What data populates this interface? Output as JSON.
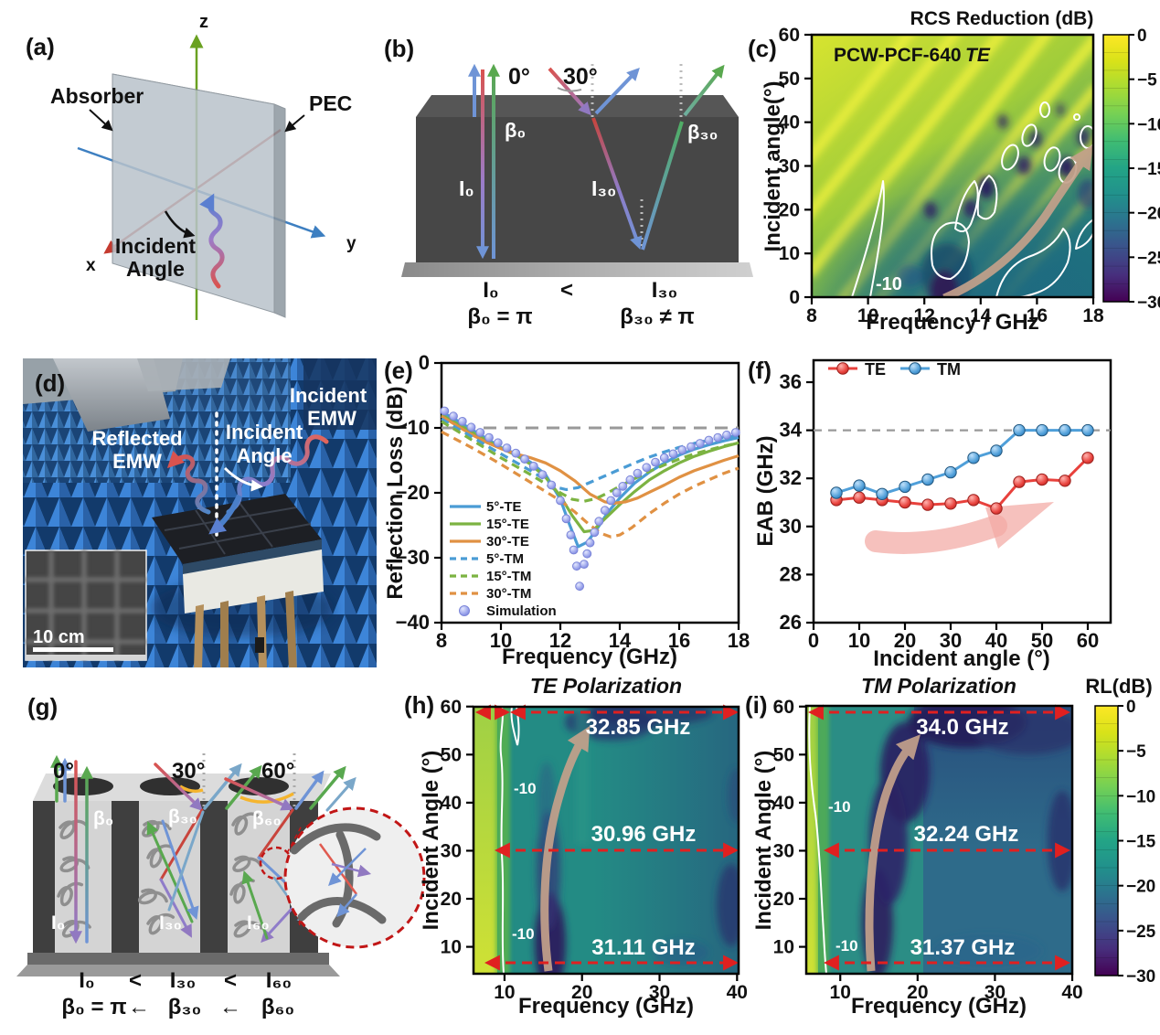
{
  "colors": {
    "viridis_top": "#fde725",
    "viridis_bottom": "#440154",
    "te_blue": "#4a9cd5",
    "te_green": "#7cb342",
    "te_orange": "#e09143",
    "sim_purple": "#9fa8ed",
    "f_te_red": "#e8413c",
    "f_tm_blue": "#4f9fd9",
    "annotation_red": "#e02020",
    "trend_arrow_tan": "#c4a18b"
  },
  "panels": {
    "a": {
      "label": "(a)",
      "absorber": "Absorber",
      "pec": "PEC",
      "incident1": "Incident",
      "incident2": "Angle",
      "ax_x": "x",
      "ax_y": "y",
      "ax_z": "z"
    },
    "b": {
      "label": "(b)",
      "deg0": "0°",
      "deg30": "30°",
      "beta0": "β₀",
      "beta30": "β₃₀",
      "i0": "I₀",
      "i30": "I₃₀",
      "eq_i0": "I₀",
      "eq_lt": "<",
      "eq_i30": "I₃₀",
      "eq_b0": "β₀ = π",
      "eq_b30": "β₃₀ ≠ π"
    },
    "c": {
      "label": "(c)",
      "title": "RCS Reduction (dB)",
      "sample": "PCW-PCF-640",
      "pol": "TE",
      "xlabel": "Frequency / GHz",
      "ylabel": "Incident angle(°)",
      "contour": "-10"
    },
    "d": {
      "label": "(d)",
      "refl1": "Reflected",
      "refl2": "EMW",
      "ang1": "Incident",
      "ang2": "Angle",
      "inc1": "Incident",
      "inc2": "EMW",
      "scale": "10 cm"
    },
    "e": {
      "label": "(e)",
      "xlabel": "Frequency (GHz)",
      "ylabel": "Reflection Loss (dB)"
    },
    "f": {
      "label": "(f)",
      "xlabel": "Incident angle (°)",
      "ylabel": "EAB (GHz)"
    },
    "g": {
      "label": "(g)",
      "deg0": "0°",
      "deg30": "30°",
      "deg60": "60°",
      "beta0": "β₀",
      "beta30": "β₃₀",
      "beta60": "β₆₀",
      "i0": "I₀",
      "i30": "I₃₀",
      "i60": "I₆₀",
      "eq1_i0": "I₀",
      "eq1_lt1": "<",
      "eq1_i30": "I₃₀",
      "eq1_lt2": "<",
      "eq1_i60": "I₆₀",
      "eq2_b0": "β₀ = π",
      "eq2_ar1": "←",
      "eq2_b30": "β₃₀",
      "eq2_ar2": "←",
      "eq2_b60": "β₆₀"
    },
    "h": {
      "label": "(h)",
      "title": "TE Polarization",
      "xlabel": "Frequency (GHz)",
      "ylabel": "Incident Angle (°)",
      "ann_top": "32.85 GHz",
      "ann_mid": "30.96 GHz",
      "ann_bot": "31.11 GHz",
      "contour1": "-10",
      "contour2": "-10"
    },
    "i": {
      "label": "(i)",
      "title": "TM Polarization",
      "cbar": "RL(dB)",
      "xlabel": "Frequency (GHz)",
      "ylabel": "Incident Angle (°)",
      "ann_top": "34.0 GHz",
      "ann_mid": "32.24 GHz",
      "ann_bot": "31.37 GHz",
      "contour1": "-10",
      "contour2": "-10"
    }
  },
  "chart_data": [
    {
      "id": "c",
      "type": "heatmap",
      "title": "RCS Reduction (dB)",
      "in_plot_label": "PCW-PCF-640 TE",
      "xlabel": "Frequency / GHz",
      "ylabel": "Incident angle(°)",
      "xlim": [
        8,
        18
      ],
      "ylim": [
        0,
        60
      ],
      "xticks": [
        8,
        10,
        12,
        14,
        16,
        18
      ],
      "yticks": [
        0,
        10,
        20,
        30,
        40,
        50,
        60
      ],
      "colormap": "viridis",
      "colorbar_range": [
        0,
        -30
      ],
      "colorbar_ticks": [
        0,
        -5,
        -10,
        -15,
        -20,
        -25,
        -30
      ],
      "contour_level": -10,
      "features": "Yellow diagonal interference stripes upper-left; teal region bottom-right; deep minima (<-25 dB) near 12.7 GHz at 0-5 deg and scattered blobs 13-18 GHz at 15-40 deg; tan trend arrow from (13 GHz, 0 deg) to (18 GHz, 35 deg)"
    },
    {
      "id": "e",
      "type": "line",
      "xlabel": "Frequency (GHz)",
      "ylabel": "Reflection Loss (dB)",
      "xlim": [
        8,
        18
      ],
      "ylim": [
        -40,
        0
      ],
      "xticks": [
        8,
        10,
        12,
        14,
        16,
        18
      ],
      "yticks": [
        0,
        -10,
        -20,
        -30,
        -40
      ],
      "ref_line": -10,
      "series": [
        {
          "name": "5°-TE",
          "color": "#4a9cd5",
          "dash": "solid",
          "points": [
            [
              8,
              -7.5
            ],
            [
              8.5,
              -8.8
            ],
            [
              9,
              -10.2
            ],
            [
              9.5,
              -11.6
            ],
            [
              10,
              -13
            ],
            [
              10.5,
              -14
            ],
            [
              11,
              -15.3
            ],
            [
              11.5,
              -17.2
            ],
            [
              12,
              -21
            ],
            [
              12.3,
              -24.8
            ],
            [
              12.6,
              -28.3
            ],
            [
              12.9,
              -27.6
            ],
            [
              13.2,
              -25.8
            ],
            [
              13.6,
              -23
            ],
            [
              14,
              -20.8
            ],
            [
              14.5,
              -18.5
            ],
            [
              15,
              -16.8
            ],
            [
              15.5,
              -15.4
            ],
            [
              16,
              -14.2
            ],
            [
              16.5,
              -13.3
            ],
            [
              17,
              -12.6
            ],
            [
              17.5,
              -12
            ],
            [
              18,
              -11.5
            ]
          ]
        },
        {
          "name": "15°-TE",
          "color": "#7cb342",
          "dash": "solid",
          "points": [
            [
              8,
              -8
            ],
            [
              8.5,
              -9.3
            ],
            [
              9,
              -10.6
            ],
            [
              9.5,
              -11.9
            ],
            [
              10,
              -13.1
            ],
            [
              10.5,
              -14.2
            ],
            [
              11,
              -15.6
            ],
            [
              11.5,
              -17.6
            ],
            [
              12,
              -20.5
            ],
            [
              12.4,
              -23.5
            ],
            [
              12.8,
              -26
            ],
            [
              13.1,
              -25.8
            ],
            [
              13.5,
              -24
            ],
            [
              14,
              -21.8
            ],
            [
              14.5,
              -19.8
            ],
            [
              15,
              -18
            ],
            [
              15.5,
              -16.6
            ],
            [
              16,
              -15.4
            ],
            [
              16.5,
              -14.4
            ],
            [
              17,
              -13.6
            ],
            [
              17.5,
              -12.9
            ],
            [
              18,
              -12.3
            ]
          ]
        },
        {
          "name": "30°-TE",
          "color": "#e09143",
          "dash": "solid",
          "points": [
            [
              8,
              -8.2
            ],
            [
              8.5,
              -9.6
            ],
            [
              9,
              -11
            ],
            [
              9.5,
              -12.2
            ],
            [
              10,
              -13.2
            ],
            [
              10.5,
              -14
            ],
            [
              11,
              -14.6
            ],
            [
              11.5,
              -15.4
            ],
            [
              12,
              -16.6
            ],
            [
              12.5,
              -18.2
            ],
            [
              13,
              -20.2
            ],
            [
              13.5,
              -21.4
            ],
            [
              13.8,
              -21.6
            ],
            [
              14.2,
              -21.4
            ],
            [
              14.6,
              -20.8
            ],
            [
              15,
              -19.9
            ],
            [
              15.5,
              -18.8
            ],
            [
              16,
              -17.6
            ],
            [
              16.5,
              -16.6
            ],
            [
              17,
              -15.8
            ],
            [
              17.5,
              -15
            ],
            [
              18,
              -14.3
            ]
          ]
        },
        {
          "name": "5°-TM",
          "color": "#4a9cd5",
          "dash": "dashed",
          "points": [
            [
              8,
              -8.6
            ],
            [
              8.5,
              -10
            ],
            [
              9,
              -11.3
            ],
            [
              9.5,
              -12.7
            ],
            [
              10,
              -14
            ],
            [
              10.5,
              -15.3
            ],
            [
              11,
              -16.6
            ],
            [
              11.5,
              -18
            ],
            [
              11.9,
              -19.2
            ],
            [
              12.2,
              -19.5
            ],
            [
              12.6,
              -19.2
            ],
            [
              13,
              -18.4
            ],
            [
              13.5,
              -17.4
            ],
            [
              14,
              -16.4
            ],
            [
              14.5,
              -15.4
            ],
            [
              15,
              -14.5
            ],
            [
              15.5,
              -13.7
            ],
            [
              16,
              -13
            ],
            [
              16.5,
              -12.4
            ],
            [
              17,
              -11.9
            ],
            [
              17.5,
              -11.5
            ],
            [
              18,
              -11.2
            ]
          ]
        },
        {
          "name": "15°-TM",
          "color": "#7cb342",
          "dash": "dashed",
          "points": [
            [
              8,
              -9
            ],
            [
              8.5,
              -10.4
            ],
            [
              9,
              -11.8
            ],
            [
              9.5,
              -13.2
            ],
            [
              10,
              -14.6
            ],
            [
              10.5,
              -15.9
            ],
            [
              11,
              -17.2
            ],
            [
              11.5,
              -18.6
            ],
            [
              12,
              -20
            ],
            [
              12.4,
              -21
            ],
            [
              12.8,
              -21.3
            ],
            [
              13.2,
              -20.9
            ],
            [
              13.6,
              -20
            ],
            [
              14,
              -19
            ],
            [
              14.5,
              -17.8
            ],
            [
              15,
              -16.7
            ],
            [
              15.5,
              -15.7
            ],
            [
              16,
              -14.8
            ],
            [
              16.5,
              -14
            ],
            [
              17,
              -13.4
            ],
            [
              17.5,
              -12.8
            ],
            [
              18,
              -12.3
            ]
          ]
        },
        {
          "name": "30°-TM",
          "color": "#e09143",
          "dash": "dashed",
          "points": [
            [
              8,
              -10.6
            ],
            [
              8.5,
              -11.8
            ],
            [
              9,
              -13
            ],
            [
              9.5,
              -14.3
            ],
            [
              10,
              -15.6
            ],
            [
              10.5,
              -17
            ],
            [
              11,
              -18.4
            ],
            [
              11.5,
              -19.8
            ],
            [
              12,
              -21.2
            ],
            [
              12.5,
              -23
            ],
            [
              13,
              -25
            ],
            [
              13.4,
              -26.3
            ],
            [
              13.7,
              -26.8
            ],
            [
              14,
              -26.5
            ],
            [
              14.4,
              -25.4
            ],
            [
              15,
              -23.2
            ],
            [
              15.5,
              -21.6
            ],
            [
              16,
              -20.2
            ],
            [
              16.5,
              -19
            ],
            [
              17,
              -18
            ],
            [
              17.5,
              -17
            ],
            [
              18,
              -16.2
            ]
          ]
        }
      ],
      "simulation": {
        "name": "Simulation",
        "color": "#9fa8ed",
        "points": [
          [
            8.1,
            -7.4
          ],
          [
            8.4,
            -8.2
          ],
          [
            8.7,
            -9
          ],
          [
            9,
            -9.9
          ],
          [
            9.3,
            -10.7
          ],
          [
            9.6,
            -11.5
          ],
          [
            9.9,
            -12.3
          ],
          [
            10.2,
            -13.1
          ],
          [
            10.5,
            -13.9
          ],
          [
            10.8,
            -14.8
          ],
          [
            11.1,
            -15.9
          ],
          [
            11.4,
            -17.2
          ],
          [
            11.7,
            -18.8
          ],
          [
            12,
            -21.2
          ],
          [
            12.2,
            -24
          ],
          [
            12.35,
            -26.5
          ],
          [
            12.45,
            -28.8
          ],
          [
            12.55,
            -31.3
          ],
          [
            12.65,
            -34.4
          ],
          [
            12.8,
            -31
          ],
          [
            12.9,
            -29.4
          ],
          [
            13,
            -27.7
          ],
          [
            13.15,
            -26.1
          ],
          [
            13.3,
            -24.4
          ],
          [
            13.5,
            -22.7
          ],
          [
            13.7,
            -21.2
          ],
          [
            13.9,
            -20
          ],
          [
            14.1,
            -19
          ],
          [
            14.35,
            -18
          ],
          [
            14.6,
            -17
          ],
          [
            14.9,
            -16.1
          ],
          [
            15.2,
            -15.3
          ],
          [
            15.5,
            -14.6
          ],
          [
            15.8,
            -14
          ],
          [
            16.1,
            -13.4
          ],
          [
            16.4,
            -12.9
          ],
          [
            16.7,
            -12.4
          ],
          [
            17,
            -11.9
          ],
          [
            17.3,
            -11.5
          ],
          [
            17.6,
            -11.1
          ],
          [
            17.9,
            -10.7
          ]
        ]
      }
    },
    {
      "id": "f",
      "type": "line",
      "xlabel": "Incident angle (°)",
      "ylabel": "EAB (GHz)",
      "xlim": [
        0,
        65
      ],
      "ylim": [
        26,
        36
      ],
      "xticks": [
        0,
        10,
        20,
        30,
        40,
        50,
        60
      ],
      "yticks": [
        26,
        28,
        30,
        32,
        34,
        36
      ],
      "ref_line": 34,
      "x": [
        5,
        10,
        15,
        20,
        25,
        30,
        35,
        40,
        45,
        50,
        55,
        60
      ],
      "series": [
        {
          "name": "TE",
          "color": "#e8413c",
          "values": [
            31.1,
            31.2,
            31.1,
            31.0,
            30.9,
            30.95,
            31.1,
            30.75,
            31.85,
            31.95,
            31.9,
            32.85
          ]
        },
        {
          "name": "TM",
          "color": "#4f9fd9",
          "values": [
            31.4,
            31.7,
            31.35,
            31.65,
            31.95,
            32.25,
            32.85,
            33.15,
            34.0,
            34.0,
            34.0,
            34.0
          ]
        }
      ]
    },
    {
      "id": "h",
      "type": "heatmap",
      "title": "TE Polarization",
      "xlabel": "Frequency (GHz)",
      "ylabel": "Incident Angle (°)",
      "xlim": [
        6,
        40
      ],
      "ylim": [
        4,
        60
      ],
      "xticks": [
        10,
        20,
        30,
        40
      ],
      "yticks": [
        10,
        20,
        30,
        40,
        50,
        60
      ],
      "colormap": "viridis",
      "colorbar_range": [
        0,
        -30
      ],
      "contour_level": -10,
      "annotations": [
        {
          "angle": 59,
          "text": "32.85 GHz"
        },
        {
          "angle": 30,
          "text": "30.96 GHz"
        },
        {
          "angle": 6,
          "text": "31.11 GHz"
        }
      ],
      "features": "Yellow-green band below 9 GHz; -10 dB contour near 9 GHz; deep purple absorption band near 12-13 GHz at low angles; tan trend arrow from 14.5 GHz (5 deg) to 22 GHz (60 deg)"
    },
    {
      "id": "i",
      "type": "heatmap",
      "title": "TM Polarization",
      "xlabel": "Frequency (GHz)",
      "ylabel": "Incident Angle (°)",
      "xlim": [
        5.6,
        40
      ],
      "ylim": [
        4,
        60
      ],
      "xticks": [
        10,
        20,
        30,
        40
      ],
      "yticks": [
        10,
        20,
        30,
        40,
        50,
        60
      ],
      "colormap": "viridis",
      "colorbar_range": [
        0,
        -30
      ],
      "colorbar_ticks": [
        0,
        -5,
        -10,
        -15,
        -20,
        -25,
        -30
      ],
      "colorbar_label": "RL(dB)",
      "contour_level": -10,
      "annotations": [
        {
          "angle": 59,
          "text": "34.0 GHz"
        },
        {
          "angle": 30,
          "text": "32.24 GHz"
        },
        {
          "angle": 6,
          "text": "31.37 GHz"
        }
      ],
      "features": "Yellow-green band below 8 GHz; -10 dB contour near 8.5 GHz; broad deep purple band curving from 13 GHz (5 deg) to 17 GHz (55 deg); dark region 20-30 GHz near 60 deg; tan trend arrow"
    }
  ]
}
